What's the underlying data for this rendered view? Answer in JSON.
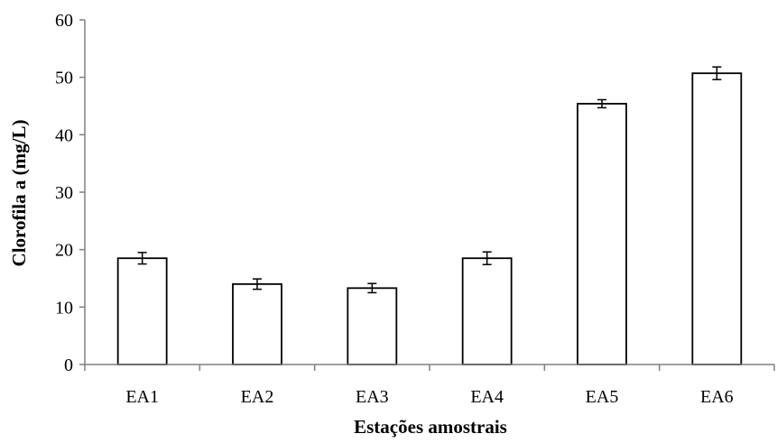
{
  "chart_data": {
    "type": "bar",
    "title": "",
    "xlabel": "Estações amostrais",
    "ylabel": "Clorofila a (mg/L)",
    "categories": [
      "EA1",
      "EA2",
      "EA3",
      "EA4",
      "EA5",
      "EA6"
    ],
    "series": [
      {
        "values": [
          18.5,
          14.0,
          13.3,
          18.5,
          45.4,
          50.7
        ],
        "error": [
          1.0,
          0.9,
          0.8,
          1.1,
          0.7,
          1.1
        ]
      }
    ],
    "ylim": [
      0,
      60
    ],
    "yticks": [
      0,
      10,
      20,
      30,
      40,
      50,
      60
    ],
    "grid": false,
    "legend": "none",
    "colors": {
      "bar_fill": "#ffffff",
      "bar_stroke": "#000000",
      "axis": "#808080"
    }
  }
}
